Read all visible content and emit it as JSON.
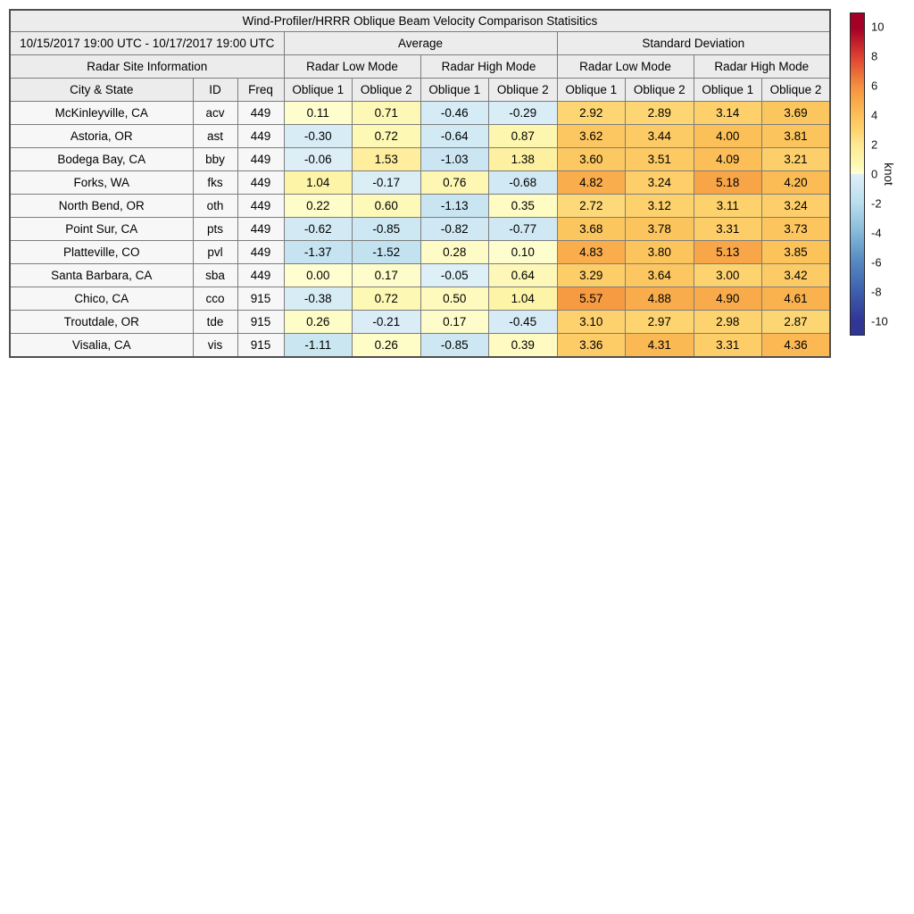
{
  "chart_data": {
    "type": "table",
    "title": "Wind-Profiler/HRRR Oblique Beam Velocity Comparison Statisitics",
    "date_range": "10/15/2017 19:00 UTC - 10/17/2017 19:00 UTC",
    "site_info_header": "Radar Site Information",
    "column_group_headers": [
      "Average",
      "Standard Deviation"
    ],
    "mode_headers": [
      "Radar Low Mode",
      "Radar High Mode",
      "Radar Low Mode",
      "Radar High Mode"
    ],
    "columns": [
      "City & State",
      "ID",
      "Freq",
      "Oblique 1",
      "Oblique 2",
      "Oblique 1",
      "Oblique 2",
      "Oblique 1",
      "Oblique 2",
      "Oblique 1",
      "Oblique 2"
    ],
    "rows": [
      {
        "city": "McKinleyville, CA",
        "id": "acv",
        "freq": 449,
        "values": [
          0.11,
          0.71,
          -0.46,
          -0.29,
          2.92,
          2.89,
          3.14,
          3.69
        ]
      },
      {
        "city": "Astoria, OR",
        "id": "ast",
        "freq": 449,
        "values": [
          -0.3,
          0.72,
          -0.64,
          0.87,
          3.62,
          3.44,
          4.0,
          3.81
        ]
      },
      {
        "city": "Bodega Bay, CA",
        "id": "bby",
        "freq": 449,
        "values": [
          -0.06,
          1.53,
          -1.03,
          1.38,
          3.6,
          3.51,
          4.09,
          3.21
        ]
      },
      {
        "city": "Forks, WA",
        "id": "fks",
        "freq": 449,
        "values": [
          1.04,
          -0.17,
          0.76,
          -0.68,
          4.82,
          3.24,
          5.18,
          4.2
        ]
      },
      {
        "city": "North Bend, OR",
        "id": "oth",
        "freq": 449,
        "values": [
          0.22,
          0.6,
          -1.13,
          0.35,
          2.72,
          3.12,
          3.11,
          3.24
        ]
      },
      {
        "city": "Point Sur, CA",
        "id": "pts",
        "freq": 449,
        "values": [
          -0.62,
          -0.85,
          -0.82,
          -0.77,
          3.68,
          3.78,
          3.31,
          3.73
        ]
      },
      {
        "city": "Platteville, CO",
        "id": "pvl",
        "freq": 449,
        "values": [
          -1.37,
          -1.52,
          0.28,
          0.1,
          4.83,
          3.8,
          5.13,
          3.85
        ]
      },
      {
        "city": "Santa Barbara, CA",
        "id": "sba",
        "freq": 449,
        "values": [
          0.0,
          0.17,
          -0.05,
          0.64,
          3.29,
          3.64,
          3.0,
          3.42
        ]
      },
      {
        "city": "Chico, CA",
        "id": "cco",
        "freq": 915,
        "values": [
          -0.38,
          0.72,
          0.5,
          1.04,
          5.57,
          4.88,
          4.9,
          4.61
        ]
      },
      {
        "city": "Troutdale, OR",
        "id": "tde",
        "freq": 915,
        "values": [
          0.26,
          -0.21,
          0.17,
          -0.45,
          3.1,
          2.97,
          2.98,
          2.87
        ]
      },
      {
        "city": "Visalia, CA",
        "id": "vis",
        "freq": 915,
        "values": [
          -1.11,
          0.26,
          -0.85,
          0.39,
          3.36,
          4.31,
          3.31,
          4.36
        ]
      }
    ],
    "colorbar": {
      "label": "knot",
      "ticks": [
        10,
        8,
        6,
        4,
        2,
        0,
        -2,
        -4,
        -6,
        -8,
        -10
      ],
      "range": [
        -10,
        10
      ],
      "colormap_stops": [
        {
          "v": -10,
          "color": "#313695"
        },
        {
          "v": -8,
          "color": "#3e60ae"
        },
        {
          "v": -6,
          "color": "#5688c1"
        },
        {
          "v": -4,
          "color": "#85b9d9"
        },
        {
          "v": -2,
          "color": "#b9deed"
        },
        {
          "v": -0.0001,
          "color": "#deeff7"
        },
        {
          "v": 0,
          "color": "#fefed1"
        },
        {
          "v": 1,
          "color": "#fdf5a9"
        },
        {
          "v": 2,
          "color": "#fee892"
        },
        {
          "v": 3,
          "color": "#fdd36f"
        },
        {
          "v": 4,
          "color": "#fcc058"
        },
        {
          "v": 5,
          "color": "#f9a949"
        },
        {
          "v": 6,
          "color": "#f5903e"
        },
        {
          "v": 8,
          "color": "#de4231"
        },
        {
          "v": 10,
          "color": "#a50026"
        }
      ]
    }
  }
}
